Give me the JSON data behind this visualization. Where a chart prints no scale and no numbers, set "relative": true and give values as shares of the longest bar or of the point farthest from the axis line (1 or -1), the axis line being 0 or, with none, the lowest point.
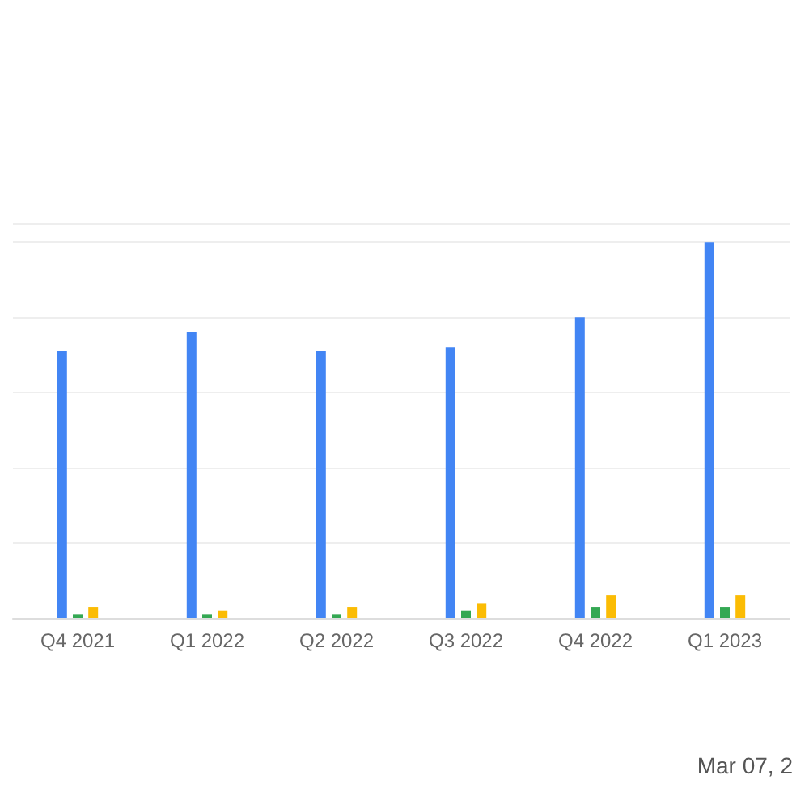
{
  "chart_data": {
    "type": "bar",
    "relative": true,
    "grid": true,
    "categories": [
      "Q4 2021",
      "Q1 2022",
      "Q2 2022",
      "Q3 2022",
      "Q4 2022",
      "Q1 2023"
    ],
    "series": [
      {
        "color": "#4285f4",
        "values": [
          0.71,
          0.76,
          0.71,
          0.72,
          0.8,
          1
        ]
      },
      {
        "color": "#34a853",
        "values": [
          0.01,
          0.01,
          0.01,
          0.02,
          0.03,
          0.03
        ]
      },
      {
        "color": "#fbbc04",
        "values": [
          0.03,
          0.02,
          0.03,
          0.04,
          0.06,
          0.06
        ]
      }
    ],
    "annotations": [
      "Mar 07, 2"
    ]
  }
}
